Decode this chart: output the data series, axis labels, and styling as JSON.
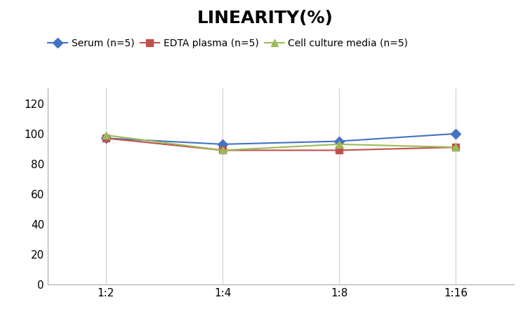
{
  "title": "LINEARITY(%)",
  "x_labels": [
    "1:2",
    "1:4",
    "1:8",
    "1:16"
  ],
  "x_positions": [
    0,
    1,
    2,
    3
  ],
  "series": [
    {
      "label": "Serum (n=5)",
      "color": "#4472C4",
      "marker": "D",
      "markersize": 7,
      "values": [
        97,
        93,
        95,
        100
      ]
    },
    {
      "label": "EDTA plasma (n=5)",
      "color": "#C0504D",
      "marker": "s",
      "markersize": 7,
      "values": [
        97,
        89,
        89,
        91
      ]
    },
    {
      "label": "Cell culture media (n=5)",
      "color": "#9BBB59",
      "marker": "^",
      "markersize": 7,
      "values": [
        99,
        89,
        93,
        91
      ]
    }
  ],
  "ylim": [
    0,
    130
  ],
  "yticks": [
    0,
    20,
    40,
    60,
    80,
    100,
    120
  ],
  "title_fontsize": 18,
  "legend_fontsize": 10,
  "tick_fontsize": 11,
  "background_color": "#ffffff",
  "grid_color": "#d0d0d0"
}
